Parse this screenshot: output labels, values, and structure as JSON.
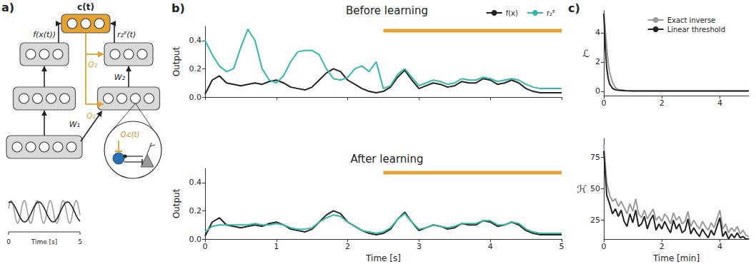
{
  "diagram": {
    "panel_label": "a)",
    "control": "c(t)",
    "output_label": "f(x(t))",
    "rate_label": "r₂ᴱ(t)",
    "feedback_weights": [
      "Q₂",
      "Q₁"
    ],
    "forward_weights": [
      "W₂",
      "W₁"
    ],
    "inset_label": "Qᵢc(t)",
    "input": {
      "xlabel": "Time [s]",
      "xticks": [
        0,
        5
      ]
    },
    "layers": {
      "left": [
        3,
        4,
        5
      ],
      "right": [
        3,
        4
      ],
      "control": 3
    }
  },
  "chart_data": [
    {
      "type": "line",
      "panel_label": "b)",
      "title": "Before learning",
      "x": [
        0,
        0.1,
        0.2,
        0.3,
        0.4,
        0.5,
        0.6,
        0.7,
        0.8,
        0.9,
        1,
        1.1,
        1.2,
        1.3,
        1.4,
        1.5,
        1.6,
        1.7,
        1.8,
        1.9,
        2,
        2.1,
        2.2,
        2.3,
        2.4,
        2.5,
        2.6,
        2.7,
        2.8,
        2.9,
        3,
        3.1,
        3.2,
        3.3,
        3.4,
        3.5,
        3.6,
        3.7,
        3.8,
        3.9,
        4,
        4.1,
        4.2,
        4.3,
        4.4,
        4.5,
        4.6,
        4.7,
        4.8,
        4.9,
        5
      ],
      "series": [
        {
          "name": "f(x)",
          "color": "#222222",
          "values": [
            0.02,
            0.12,
            0.15,
            0.1,
            0.09,
            0.08,
            0.09,
            0.1,
            0.09,
            0.11,
            0.12,
            0.1,
            0.07,
            0.06,
            0.05,
            0.07,
            0.12,
            0.17,
            0.2,
            0.18,
            0.12,
            0.09,
            0.06,
            0.04,
            0.03,
            0.04,
            0.07,
            0.14,
            0.19,
            0.12,
            0.06,
            0.08,
            0.1,
            0.09,
            0.07,
            0.08,
            0.11,
            0.1,
            0.1,
            0.13,
            0.12,
            0.09,
            0.1,
            0.12,
            0.1,
            0.06,
            0.04,
            0.03,
            0.03,
            0.03,
            0.03
          ]
        },
        {
          "name": "r₂ᴱ",
          "color": "#35b8a8",
          "values": [
            0.4,
            0.3,
            0.22,
            0.18,
            0.2,
            0.35,
            0.48,
            0.4,
            0.2,
            0.12,
            0.1,
            0.15,
            0.25,
            0.32,
            0.33,
            0.33,
            0.3,
            0.2,
            0.13,
            0.12,
            0.14,
            0.2,
            0.22,
            0.18,
            0.25,
            0.06,
            0.08,
            0.16,
            0.2,
            0.14,
            0.08,
            0.1,
            0.12,
            0.11,
            0.09,
            0.1,
            0.13,
            0.12,
            0.12,
            0.14,
            0.13,
            0.11,
            0.12,
            0.13,
            0.12,
            0.09,
            0.07,
            0.06,
            0.06,
            0.06,
            0.06
          ]
        }
      ],
      "band": {
        "x": [
          2.5,
          5
        ],
        "y": 0.47,
        "color": "#e3a232"
      },
      "xlim": [
        0,
        5
      ],
      "xticks": [
        0,
        1,
        2,
        3,
        4,
        5
      ],
      "ylim": [
        0,
        0.5
      ],
      "yticks": [
        {
          "value": 0,
          "label": "0.0"
        },
        {
          "value": 0.2,
          "label": "0.2"
        },
        {
          "value": 0.4,
          "label": "0.4"
        }
      ],
      "ylabel": "Output",
      "tick_labels": "y",
      "legend": "upper right",
      "grid": false
    },
    {
      "type": "line",
      "title": "After learning",
      "x": [
        0,
        0.1,
        0.2,
        0.3,
        0.4,
        0.5,
        0.6,
        0.7,
        0.8,
        0.9,
        1,
        1.1,
        1.2,
        1.3,
        1.4,
        1.5,
        1.6,
        1.7,
        1.8,
        1.9,
        2,
        2.1,
        2.2,
        2.3,
        2.4,
        2.5,
        2.6,
        2.7,
        2.8,
        2.9,
        3,
        3.1,
        3.2,
        3.3,
        3.4,
        3.5,
        3.6,
        3.7,
        3.8,
        3.9,
        4,
        4.1,
        4.2,
        4.3,
        4.4,
        4.5,
        4.6,
        4.7,
        4.8,
        4.9,
        5
      ],
      "series": [
        {
          "name": "f(x)",
          "color": "#222222",
          "values": [
            0.02,
            0.12,
            0.15,
            0.1,
            0.09,
            0.08,
            0.09,
            0.1,
            0.09,
            0.11,
            0.12,
            0.1,
            0.07,
            0.06,
            0.05,
            0.07,
            0.12,
            0.17,
            0.2,
            0.18,
            0.12,
            0.09,
            0.06,
            0.04,
            0.03,
            0.04,
            0.07,
            0.14,
            0.19,
            0.12,
            0.06,
            0.08,
            0.1,
            0.09,
            0.07,
            0.08,
            0.11,
            0.1,
            0.1,
            0.13,
            0.12,
            0.09,
            0.1,
            0.12,
            0.1,
            0.06,
            0.04,
            0.03,
            0.03,
            0.03,
            0.03
          ]
        },
        {
          "name": "r₂ᴱ",
          "color": "#35b8a8",
          "values": [
            0.05,
            0.09,
            0.1,
            0.1,
            0.1,
            0.1,
            0.1,
            0.11,
            0.1,
            0.1,
            0.11,
            0.1,
            0.08,
            0.07,
            0.07,
            0.08,
            0.12,
            0.15,
            0.17,
            0.16,
            0.12,
            0.09,
            0.06,
            0.05,
            0.04,
            0.05,
            0.08,
            0.14,
            0.18,
            0.12,
            0.07,
            0.08,
            0.1,
            0.09,
            0.08,
            0.09,
            0.11,
            0.11,
            0.11,
            0.13,
            0.13,
            0.1,
            0.1,
            0.12,
            0.11,
            0.07,
            0.05,
            0.04,
            0.04,
            0.04,
            0.04
          ]
        }
      ],
      "band": {
        "x": [
          2.5,
          5
        ],
        "y": 0.47,
        "color": "#e3a232"
      },
      "xlim": [
        0,
        5
      ],
      "xticks": [
        0,
        1,
        2,
        3,
        4,
        5
      ],
      "ylim": [
        0,
        0.5
      ],
      "yticks": [
        {
          "value": 0,
          "label": "0.0"
        },
        {
          "value": 0.2,
          "label": "0.2"
        },
        {
          "value": 0.4,
          "label": "0.4"
        }
      ],
      "xlabel": "Time [s]",
      "ylabel": "Output",
      "grid": false
    },
    {
      "type": "line",
      "panel_label": "c)",
      "x": [
        0,
        0.05,
        0.1,
        0.15,
        0.2,
        0.3,
        0.4,
        0.5,
        0.75,
        1,
        2,
        3,
        4,
        5
      ],
      "series": [
        {
          "name": "Exact inverse",
          "color": "#9a9a9a",
          "values": [
            5.3,
            4.2,
            3.0,
            2.0,
            1.3,
            0.6,
            0.25,
            0.12,
            0.05,
            0.03,
            0.02,
            0.02,
            0.02,
            0.02
          ]
        },
        {
          "name": "Linear threshold",
          "color": "#222222",
          "values": [
            5.3,
            3.0,
            1.6,
            0.9,
            0.5,
            0.2,
            0.1,
            0.06,
            0.03,
            0.02,
            0.02,
            0.02,
            0.02,
            0.02
          ]
        }
      ],
      "xlim": [
        0,
        5
      ],
      "xticks": [
        0,
        2,
        4
      ],
      "ylim": [
        -0.3,
        5.5
      ],
      "yticks": [
        0,
        2,
        4
      ],
      "ylabel": "ℒ",
      "legend": "upper right",
      "grid": false
    },
    {
      "type": "line",
      "x": [
        0,
        0.1,
        0.2,
        0.3,
        0.4,
        0.5,
        0.6,
        0.7,
        0.8,
        0.9,
        1,
        1.1,
        1.2,
        1.3,
        1.4,
        1.5,
        1.6,
        1.7,
        1.8,
        1.9,
        2,
        2.1,
        2.2,
        2.3,
        2.4,
        2.5,
        2.6,
        2.7,
        2.8,
        2.9,
        3,
        3.1,
        3.2,
        3.3,
        3.4,
        3.5,
        3.6,
        3.7,
        3.8,
        3.9,
        4,
        4.1,
        4.2,
        4.3,
        4.4,
        4.5,
        4.6,
        4.7,
        4.8,
        4.9,
        5
      ],
      "series": [
        {
          "name": "Exact inverse",
          "color": "#9a9a9a",
          "values": [
            85,
            55,
            45,
            40,
            42,
            36,
            40,
            35,
            30,
            38,
            32,
            42,
            30,
            27,
            33,
            26,
            30,
            34,
            25,
            28,
            24,
            30,
            27,
            22,
            31,
            25,
            28,
            22,
            24,
            32,
            20,
            25,
            21,
            18,
            24,
            20,
            17,
            23,
            19,
            26,
            33,
            18,
            22,
            15,
            19,
            16,
            20,
            14,
            17,
            13,
            12
          ]
        },
        {
          "name": "Linear threshold",
          "color": "#222222",
          "values": [
            80,
            45,
            38,
            30,
            34,
            28,
            33,
            24,
            20,
            30,
            23,
            33,
            20,
            22,
            28,
            18,
            25,
            29,
            17,
            22,
            18,
            24,
            19,
            15,
            25,
            18,
            22,
            15,
            17,
            26,
            14,
            19,
            15,
            12,
            18,
            14,
            11,
            17,
            13,
            20,
            27,
            12,
            16,
            10,
            14,
            11,
            15,
            11,
            12,
            10,
            10
          ]
        }
      ],
      "xlim": [
        0,
        5
      ],
      "xticks": [
        0,
        2,
        4
      ],
      "ylim": [
        10,
        90
      ],
      "yticks": [
        25,
        50,
        75
      ],
      "xlabel": "Time [min]",
      "ylabel": "ℋ",
      "grid": false
    }
  ]
}
